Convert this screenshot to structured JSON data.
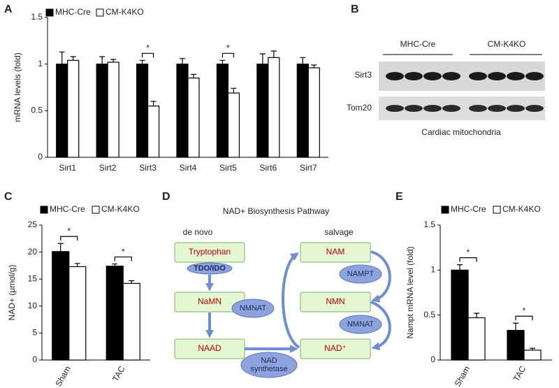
{
  "chart_data": [
    {
      "panel_label": "A",
      "type": "bar",
      "y_label": "mRNA levels (fold)",
      "categories": [
        "Sirt1",
        "Sirt2",
        "Sirt3",
        "Sirt4",
        "Sirt5",
        "Sirt6",
        "Sirt7"
      ],
      "series": [
        {
          "name": "MHC-Cre",
          "color": "#000000",
          "values": [
            1,
            1,
            1,
            1,
            1,
            1,
            1
          ],
          "errors": [
            0.13,
            0.08,
            0.04,
            0.06,
            0.04,
            0.11,
            0.07
          ]
        },
        {
          "name": "CM-K4KO",
          "color": "#ffffff",
          "values": [
            1.04,
            1.02,
            0.55,
            0.85,
            0.69,
            1.07,
            0.96
          ],
          "errors": [
            0.04,
            0.03,
            0.05,
            0.04,
            0.05,
            0.07,
            0.03
          ]
        }
      ],
      "ylim": [
        0,
        1.5
      ],
      "yticks": [
        0,
        0.5,
        1,
        1.5
      ],
      "legend": "top-left",
      "significance": [
        {
          "category": "Sirt3",
          "label": "*"
        },
        {
          "category": "Sirt5",
          "label": "*"
        }
      ]
    },
    {
      "panel_label": "C",
      "type": "bar",
      "y_label": "NAD+ (μmol/g)",
      "categories": [
        "Sham",
        "TAC"
      ],
      "series": [
        {
          "name": "MHC-Cre",
          "color": "#000000",
          "values": [
            20.1,
            17.4
          ],
          "errors": [
            1.5,
            0.4
          ]
        },
        {
          "name": "CM-K4KO",
          "color": "#ffffff",
          "values": [
            17.3,
            14.2
          ],
          "errors": [
            0.6,
            0.5
          ]
        }
      ],
      "ylim": [
        0,
        25
      ],
      "yticks": [
        0,
        5,
        10,
        15,
        20,
        25
      ],
      "legend": "top-left",
      "significance": [
        {
          "category": "Sham",
          "label": "*"
        },
        {
          "category": "TAC",
          "label": "*"
        }
      ]
    },
    {
      "panel_label": "E",
      "type": "bar",
      "y_label": "Nampt mRNA level (fold)",
      "categories": [
        "Sham",
        "TAC"
      ],
      "series": [
        {
          "name": "MHC-Cre",
          "color": "#000000",
          "values": [
            1.0,
            0.33
          ],
          "errors": [
            0.06,
            0.08
          ]
        },
        {
          "name": "CM-K4KO",
          "color": "#ffffff",
          "values": [
            0.47,
            0.11
          ],
          "errors": [
            0.05,
            0.02
          ]
        }
      ],
      "ylim": [
        0,
        1.5
      ],
      "yticks": [
        0,
        0.5,
        1,
        1.5
      ],
      "legend": "top-left",
      "significance": [
        {
          "category": "Sham",
          "label": "*"
        },
        {
          "category": "TAC",
          "label": "*"
        }
      ]
    }
  ],
  "blot": {
    "panel_label": "B",
    "groups": [
      "MHC-Cre",
      "CM-K4KO"
    ],
    "rows": [
      "Sirt3",
      "Tom20"
    ],
    "caption": "Cardiac mitochondria"
  },
  "diagram": {
    "panel_label": "D",
    "title": "NAD+ Biosynthesis Pathway",
    "columns": [
      "de novo",
      "salvage"
    ],
    "nodes": [
      "Tryptophan",
      "NaMN",
      "NAAD",
      "NAM",
      "NMN",
      "NAD⁺"
    ],
    "enzymes": [
      [
        "TDO/IDO"
      ],
      [
        "NMNAT"
      ],
      [
        "NAD",
        "synthetase"
      ],
      [
        "NAMPT"
      ],
      [
        "NMNAT"
      ]
    ]
  }
}
